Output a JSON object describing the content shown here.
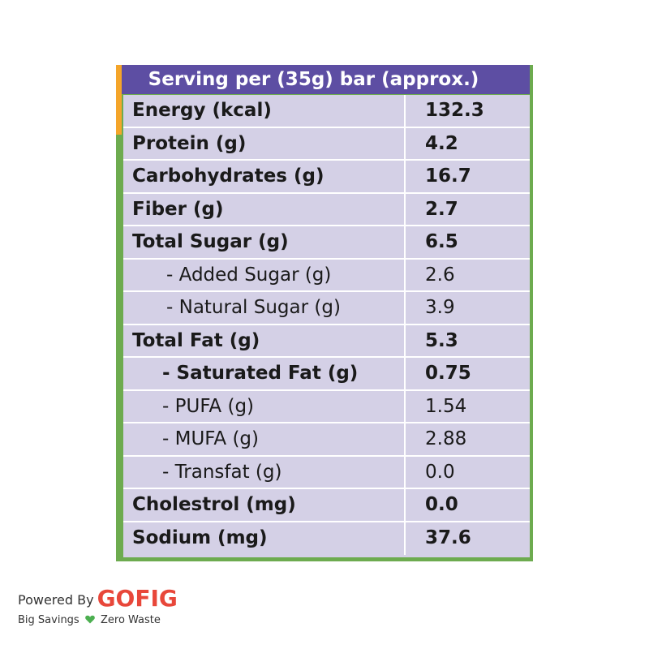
{
  "panel": {
    "header": "Serving per (35g) bar (approx.)",
    "colors": {
      "header_bg": "#5d4ea3",
      "frame": "#6dab4f",
      "accent": "#f4a52a",
      "table_bg": "#d4d0e6"
    },
    "rows": [
      {
        "label": "Energy (kcal)",
        "value": "132.3"
      },
      {
        "label": "Protein (g)",
        "value": "4.2"
      },
      {
        "label": "Carbohydrates (g)",
        "value": "16.7"
      },
      {
        "label": "Fiber (g)",
        "value": "2.7"
      },
      {
        "label": "Total Sugar (g)",
        "value": "6.5"
      },
      {
        "label": "- Added Sugar (g)",
        "value": "2.6"
      },
      {
        "label": "- Natural Sugar (g)",
        "value": "3.9"
      },
      {
        "label": "Total Fat (g)",
        "value": "5.3"
      },
      {
        "label": "- Saturated Fat (g)",
        "value": "0.75"
      },
      {
        "label": "- PUFA (g)",
        "value": "1.54"
      },
      {
        "label": "- MUFA (g)",
        "value": "2.88"
      },
      {
        "label": "- Transfat (g)",
        "value": "0.0"
      },
      {
        "label": "Cholestrol (mg)",
        "value": "0.0"
      },
      {
        "label": "Sodium (mg)",
        "value": "37.6"
      }
    ]
  },
  "footer": {
    "powered_by": "Powered By",
    "brand": "GOFIG",
    "tagline_left": "Big Savings",
    "tagline_right": "Zero Waste",
    "heart_icon": "heart-icon",
    "brand_color": "#e8473a",
    "heart_color": "#4caf50"
  }
}
